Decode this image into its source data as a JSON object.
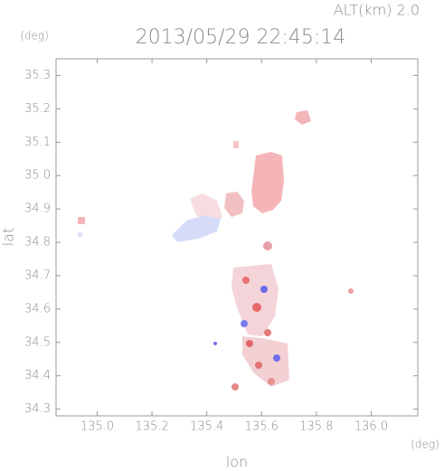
{
  "chart_data": {
    "type": "image",
    "title": "2013/05/29 22:45:14",
    "subtitle": "ALT(km) 2.0",
    "x_label": "lon",
    "y_label": "lat",
    "x_unit": "(deg)",
    "y_unit": "(deg)",
    "xlim": [
      134.85,
      136.17
    ],
    "xticks": [
      {
        "value": 135.0,
        "label": "135.0"
      },
      135.2,
      135.4,
      135.6,
      135.8,
      {
        "value": 136.0,
        "label": "136.0"
      }
    ],
    "ylim": [
      34.28,
      35.35
    ],
    "yticks": [
      34.3,
      34.4,
      34.5,
      34.6,
      34.7,
      34.8,
      34.9,
      {
        "value": 35.0,
        "label": "35.0"
      },
      35.1,
      35.2,
      35.3
    ]
  }
}
